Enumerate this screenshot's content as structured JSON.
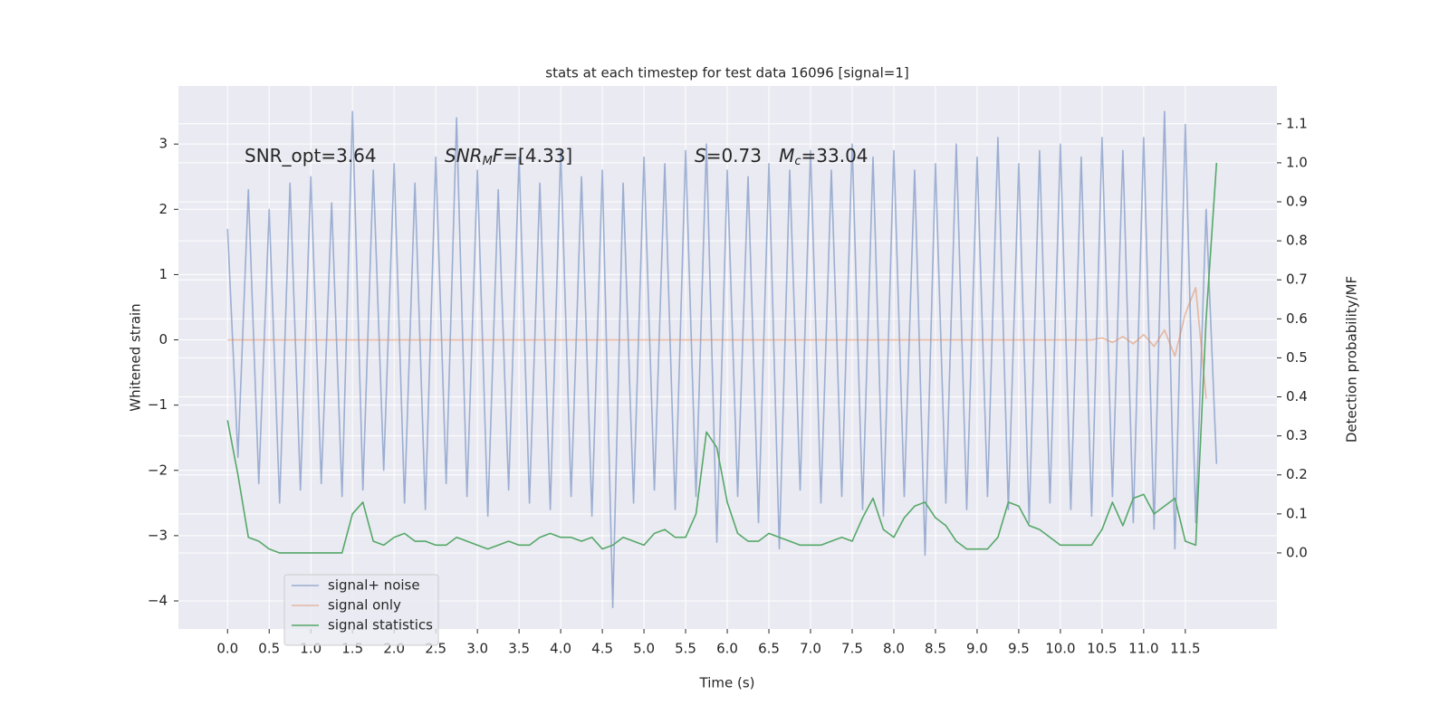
{
  "chart_data": {
    "type": "line",
    "title": "stats at each timestep for test data 16096 [signal=1]",
    "xlabel": "Time (s)",
    "ylabel": "Whitened strain",
    "y2label": "Detection probability/MF",
    "annotations": [
      {
        "parts": [
          "SNR_opt=3.64"
        ],
        "styles": [
          "normal"
        ]
      },
      {
        "parts": [
          "SNR",
          "M",
          "F",
          "=[4.33]"
        ],
        "styles": [
          "italic",
          "sub",
          "italic",
          "normal"
        ]
      },
      {
        "parts": [
          "S",
          "=0.73   ",
          "M",
          "c",
          "=33.04"
        ],
        "styles": [
          "italic",
          "normal",
          "italic",
          "sub",
          "normal"
        ]
      }
    ],
    "x": [
      0,
      0.125,
      0.25,
      0.375,
      0.5,
      0.625,
      0.75,
      0.875,
      1,
      1.125,
      1.25,
      1.375,
      1.5,
      1.625,
      1.75,
      1.875,
      2,
      2.125,
      2.25,
      2.375,
      2.5,
      2.625,
      2.75,
      2.875,
      3,
      3.125,
      3.25,
      3.375,
      3.5,
      3.625,
      3.75,
      3.875,
      4,
      4.125,
      4.25,
      4.375,
      4.5,
      4.625,
      4.75,
      4.875,
      5,
      5.125,
      5.25,
      5.375,
      5.5,
      5.625,
      5.75,
      5.875,
      6,
      6.125,
      6.25,
      6.375,
      6.5,
      6.625,
      6.75,
      6.875,
      7,
      7.125,
      7.25,
      7.375,
      7.5,
      7.625,
      7.75,
      7.875,
      8,
      8.125,
      8.25,
      8.375,
      8.5,
      8.625,
      8.75,
      8.875,
      9,
      9.125,
      9.25,
      9.375,
      9.5,
      9.625,
      9.75,
      9.875,
      10,
      10.125,
      10.25,
      10.375,
      10.5,
      10.625,
      10.75,
      10.875,
      11,
      11.125,
      11.25,
      11.375,
      11.5,
      11.625,
      11.75,
      11.875
    ],
    "series": [
      {
        "name": "signal+ noise",
        "color": "#4c72b0",
        "opacity": 0.5,
        "values": [
          1.7,
          -1.8,
          2.3,
          -2.2,
          2.0,
          -2.5,
          2.4,
          -2.3,
          2.5,
          -2.2,
          2.1,
          -2.4,
          3.5,
          -2.3,
          2.6,
          -2.0,
          2.7,
          -2.5,
          2.4,
          -2.6,
          2.8,
          -2.2,
          3.4,
          -2.4,
          2.6,
          -2.7,
          2.3,
          -2.3,
          2.8,
          -2.5,
          2.4,
          -2.6,
          2.9,
          -2.4,
          2.5,
          -2.7,
          2.6,
          -4.1,
          2.4,
          -2.5,
          2.8,
          -2.3,
          2.7,
          -2.6,
          2.9,
          -2.4,
          3.0,
          -3.1,
          2.6,
          -2.4,
          2.5,
          -2.8,
          2.7,
          -3.2,
          2.6,
          -2.3,
          2.9,
          -2.5,
          2.6,
          -2.4,
          3.0,
          -2.6,
          2.8,
          -2.7,
          2.9,
          -2.4,
          2.6,
          -3.3,
          2.7,
          -2.5,
          3.0,
          -2.6,
          2.8,
          -2.4,
          3.1,
          -2.6,
          2.7,
          -2.8,
          2.9,
          -2.5,
          3.0,
          -2.6,
          2.8,
          -2.7,
          3.1,
          -2.4,
          2.9,
          -2.8,
          3.1,
          -2.9,
          3.5,
          -3.2,
          3.3,
          -2.8,
          2.0,
          -1.9
        ]
      },
      {
        "name": "signal only",
        "color": "#dd8452",
        "opacity": 0.5,
        "values": [
          0,
          0,
          0,
          0,
          0,
          0,
          0,
          0,
          0,
          0,
          0,
          0,
          0,
          0,
          0,
          0,
          0,
          0,
          0,
          0,
          0,
          0,
          0,
          0,
          0,
          0,
          0,
          0,
          0,
          0,
          0,
          0,
          0,
          0,
          0,
          0,
          0,
          0,
          0,
          0,
          0,
          0,
          0,
          0,
          0,
          0,
          0,
          0,
          0,
          0,
          0,
          0,
          0,
          0,
          0,
          0,
          0,
          0,
          0,
          0,
          0,
          0,
          0,
          0,
          0,
          0,
          0,
          0,
          0,
          0,
          0,
          0,
          0,
          0,
          0,
          0,
          0,
          0,
          0,
          0,
          0,
          0,
          0,
          0,
          0.03,
          -0.04,
          0.05,
          -0.06,
          0.08,
          -0.1,
          0.15,
          -0.25,
          0.4,
          0.8,
          -0.9,
          null
        ]
      },
      {
        "name": "signal statistics",
        "color": "#55a868",
        "opacity": 1,
        "axis": "y2",
        "values": [
          0.34,
          0.2,
          0.04,
          0.03,
          0.01,
          0,
          0,
          0,
          0,
          0,
          0,
          0,
          0.1,
          0.13,
          0.03,
          0.02,
          0.04,
          0.05,
          0.03,
          0.03,
          0.02,
          0.02,
          0.04,
          0.03,
          0.02,
          0.01,
          0.02,
          0.03,
          0.02,
          0.02,
          0.04,
          0.05,
          0.04,
          0.04,
          0.03,
          0.04,
          0.01,
          0.02,
          0.04,
          0.03,
          0.02,
          0.05,
          0.06,
          0.04,
          0.04,
          0.1,
          0.31,
          0.27,
          0.13,
          0.05,
          0.03,
          0.03,
          0.05,
          0.04,
          0.03,
          0.02,
          0.02,
          0.02,
          0.03,
          0.04,
          0.03,
          0.09,
          0.14,
          0.06,
          0.04,
          0.09,
          0.12,
          0.13,
          0.09,
          0.07,
          0.03,
          0.01,
          0.01,
          0.01,
          0.04,
          0.13,
          0.12,
          0.07,
          0.06,
          0.04,
          0.02,
          0.02,
          0.02,
          0.02,
          0.06,
          0.13,
          0.07,
          0.14,
          0.15,
          0.1,
          0.12,
          0.14,
          0.03,
          0.02,
          0.6,
          1.0
        ]
      }
    ],
    "xlim": [
      -0.59,
      12.6
    ],
    "xticks": [
      {
        "value": 0,
        "label": "0.0"
      },
      0.5,
      {
        "value": 1,
        "label": "1.0"
      },
      1.5,
      {
        "value": 2,
        "label": "2.0"
      },
      2.5,
      {
        "value": 3,
        "label": "3.0"
      },
      3.5,
      {
        "value": 4,
        "label": "4.0"
      },
      4.5,
      {
        "value": 5,
        "label": "5.0"
      },
      5.5,
      {
        "value": 6,
        "label": "6.0"
      },
      6.5,
      {
        "value": 7,
        "label": "7.0"
      },
      7.5,
      {
        "value": 8,
        "label": "8.0"
      },
      8.5,
      {
        "value": 9,
        "label": "9.0"
      },
      9.5,
      {
        "value": 10,
        "label": "10.0"
      },
      10.5,
      {
        "value": 11,
        "label": "11.0"
      },
      11.5
    ],
    "ylim": [
      -4.43,
      3.89
    ],
    "yticks": [
      {
        "value": -4,
        "label": "−4"
      },
      {
        "value": -3,
        "label": "−3"
      },
      {
        "value": -2,
        "label": "−2"
      },
      {
        "value": -1,
        "label": "−1"
      },
      0,
      1,
      2,
      3
    ],
    "y2lim": [
      -0.195,
      1.197
    ],
    "y2ticks": [
      {
        "value": 0,
        "label": "0.0"
      },
      0.1,
      0.2,
      0.3,
      0.4,
      0.5,
      0.6,
      0.7,
      0.8,
      0.9,
      {
        "value": 1,
        "label": "1.0"
      },
      1.1
    ],
    "grid": true,
    "legend": "lower left",
    "background": "#eaeaf2"
  }
}
